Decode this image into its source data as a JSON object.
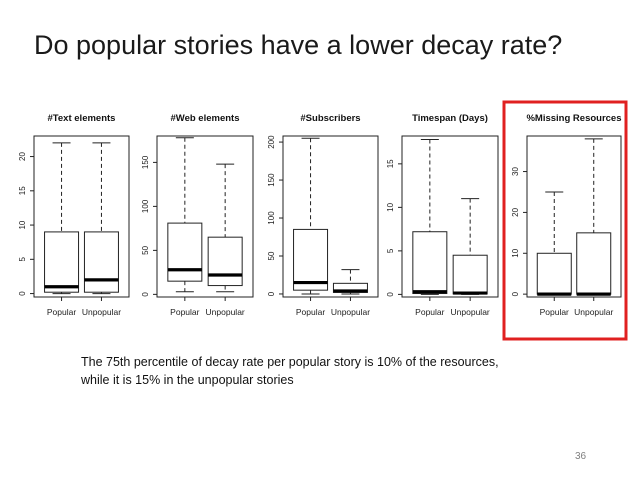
{
  "slide": {
    "title": "Do popular stories have a lower decay rate?",
    "caption_line1": "The 75th percentile of decay rate per popular story is 10% of the resources,",
    "caption_line2": "while it is 15% in the unpopular stories",
    "page_number": "36",
    "highlight_color": "#e02020"
  },
  "chart_data": [
    {
      "type": "boxplot",
      "title": "#Text elements",
      "categories": [
        "Popular",
        "Unpopular"
      ],
      "yticks": [
        0,
        5,
        10,
        15,
        20
      ],
      "ylim": [
        -0.5,
        23
      ],
      "boxes": [
        {
          "min": 0,
          "q1": 0.2,
          "median": 1,
          "q3": 9,
          "max": 22
        },
        {
          "min": 0,
          "q1": 0.2,
          "median": 2,
          "q3": 9,
          "max": 22
        }
      ],
      "highlighted": false
    },
    {
      "type": "boxplot",
      "title": "#Web elements",
      "categories": [
        "Popular",
        "Unpopular"
      ],
      "yticks": [
        0,
        50,
        100,
        150
      ],
      "ylim": [
        -3,
        180
      ],
      "boxes": [
        {
          "min": 3,
          "q1": 15,
          "median": 28,
          "q3": 81,
          "max": 178
        },
        {
          "min": 3,
          "q1": 10,
          "median": 22,
          "q3": 65,
          "max": 148
        }
      ],
      "highlighted": false
    },
    {
      "type": "boxplot",
      "title": "#Subscribers",
      "categories": [
        "Popular",
        "Unpopular"
      ],
      "yticks": [
        0,
        50,
        100,
        150,
        200
      ],
      "ylim": [
        -4,
        208
      ],
      "boxes": [
        {
          "min": 0,
          "q1": 5,
          "median": 15,
          "q3": 85,
          "max": 205
        },
        {
          "min": 0,
          "q1": 2,
          "median": 4,
          "q3": 14,
          "max": 32
        }
      ],
      "highlighted": false
    },
    {
      "type": "boxplot",
      "title": "Timespan (Days)",
      "categories": [
        "Popular",
        "Unpopular"
      ],
      "yticks": [
        0,
        5,
        10,
        15
      ],
      "ylim": [
        -0.3,
        18.2
      ],
      "boxes": [
        {
          "min": 0,
          "q1": 0.1,
          "median": 0.3,
          "q3": 7.2,
          "max": 17.8
        },
        {
          "min": 0,
          "q1": 0.05,
          "median": 0.15,
          "q3": 4.5,
          "max": 11
        }
      ],
      "highlighted": false
    },
    {
      "type": "boxplot",
      "title": "%Missing Resources",
      "categories": [
        "Popular",
        "Unpopular"
      ],
      "yticks": [
        0,
        10,
        20,
        30
      ],
      "ylim": [
        -0.7,
        38.7
      ],
      "boxes": [
        {
          "min": 0,
          "q1": 0,
          "median": 0,
          "q3": 10,
          "max": 25
        },
        {
          "min": 0,
          "q1": 0,
          "median": 0,
          "q3": 15,
          "max": 38
        }
      ],
      "highlighted": true
    }
  ]
}
